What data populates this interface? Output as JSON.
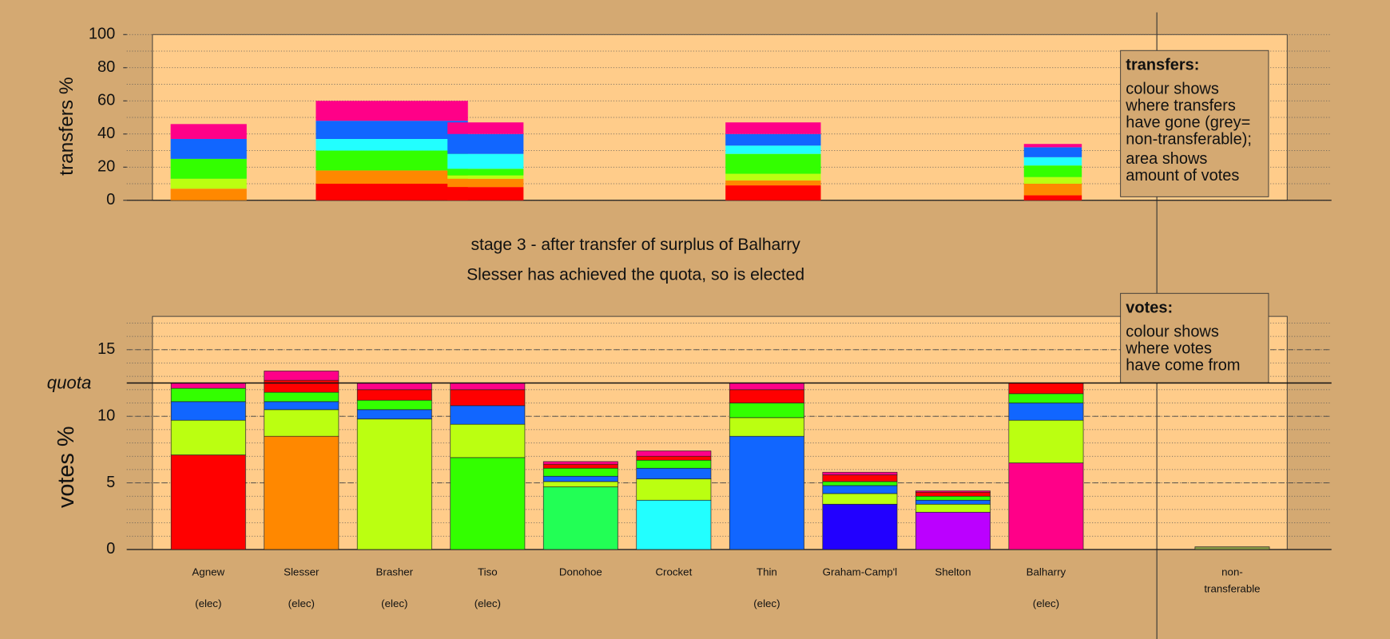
{
  "stage_title": "stage 3 - after transfer of surplus of Balharry",
  "stage_note": "Slesser has achieved the quota, so is elected",
  "chart_data": [
    {
      "type": "transfers",
      "ylabel": "transfers %",
      "ylim": [
        0,
        100
      ],
      "yticks": [
        0,
        20,
        40,
        60,
        80,
        100
      ],
      "xlim": [
        0,
        100
      ],
      "grid": true,
      "note": {
        "title": "transfers:",
        "lines": [
          "colour shows",
          "where transfers",
          "have gone (grey=",
          "non-transferable);",
          "area shows",
          "amount of votes"
        ]
      },
      "bars": [
        {
          "x": 1.6,
          "width": 6.7,
          "segments": [
            {
              "color": "#ff8800",
              "value": 7
            },
            {
              "color": "#bbff11",
              "value": 6
            },
            {
              "color": "#33ff00",
              "value": 12
            },
            {
              "color": "#1166ff",
              "value": 12
            },
            {
              "color": "#ff0088",
              "value": 9
            }
          ]
        },
        {
          "x": 14.4,
          "width": 13.4,
          "segments": [
            {
              "color": "#ff0000",
              "value": 10
            },
            {
              "color": "#ff8800",
              "value": 8
            },
            {
              "color": "#33ff00",
              "value": 12
            },
            {
              "color": "#22ffff",
              "value": 7
            },
            {
              "color": "#1166ff",
              "value": 11
            },
            {
              "color": "#ff0088",
              "value": 12
            }
          ]
        },
        {
          "x": 26.0,
          "width": 6.7,
          "segments": [
            {
              "color": "#ff0000",
              "value": 8
            },
            {
              "color": "#ff8800",
              "value": 5
            },
            {
              "color": "#bbff11",
              "value": 2
            },
            {
              "color": "#33ff00",
              "value": 4
            },
            {
              "color": "#22ffff",
              "value": 9
            },
            {
              "color": "#1166ff",
              "value": 12
            },
            {
              "color": "#ff0088",
              "value": 7
            }
          ]
        },
        {
          "x": 50.5,
          "width": 8.4,
          "segments": [
            {
              "color": "#ff0000",
              "value": 9
            },
            {
              "color": "#ff8800",
              "value": 3
            },
            {
              "color": "#bbff11",
              "value": 4
            },
            {
              "color": "#33ff00",
              "value": 12
            },
            {
              "color": "#22ffff",
              "value": 5
            },
            {
              "color": "#1166ff",
              "value": 7
            },
            {
              "color": "#ff0088",
              "value": 7
            }
          ]
        },
        {
          "x": 76.8,
          "width": 5.1,
          "segments": [
            {
              "color": "#ff0000",
              "value": 3
            },
            {
              "color": "#ff8800",
              "value": 7
            },
            {
              "color": "#bbff11",
              "value": 4
            },
            {
              "color": "#33ff00",
              "value": 7
            },
            {
              "color": "#22ffff",
              "value": 5
            },
            {
              "color": "#1166ff",
              "value": 6
            },
            {
              "color": "#ff0088",
              "value": 2
            }
          ]
        }
      ]
    },
    {
      "type": "votes",
      "ylabel": "votes %",
      "ylim": [
        0,
        17.5
      ],
      "yticks": [
        0,
        5,
        10,
        15
      ],
      "grid": true,
      "minor_grid": 1,
      "quota": {
        "label": "quota",
        "value": 12.5
      },
      "note": {
        "title": "votes:",
        "lines": [
          "colour shows",
          "where votes",
          "have come from"
        ]
      },
      "categories": [
        "Agnew",
        "Slesser",
        "Brasher",
        "Tiso",
        "Donohoe",
        "Crocket",
        "Thin",
        "Graham-Camp'l",
        "Shelton",
        "Balharry",
        null,
        [
          "non-",
          "transferable"
        ]
      ],
      "sub_labels": [
        "(elec)",
        "(elec)",
        "(elec)",
        "(elec)",
        null,
        null,
        "(elec)",
        null,
        null,
        "(elec)",
        null,
        null
      ],
      "bars": [
        {
          "segments": [
            {
              "color": "#ff0000",
              "value": 7.1
            },
            {
              "color": "#bbff11",
              "value": 2.6
            },
            {
              "color": "#1166ff",
              "value": 1.4
            },
            {
              "color": "#33ff00",
              "value": 1.0
            },
            {
              "color": "#ff0088",
              "value": 0.4
            }
          ]
        },
        {
          "segments": [
            {
              "color": "#ff8800",
              "value": 8.5
            },
            {
              "color": "#bbff11",
              "value": 2.0
            },
            {
              "color": "#1166ff",
              "value": 0.6
            },
            {
              "color": "#33ff00",
              "value": 0.7
            },
            {
              "color": "#ff0000",
              "value": 0.9
            },
            {
              "color": "#ff0088",
              "value": 0.7
            }
          ]
        },
        {
          "segments": [
            {
              "color": "#bbff11",
              "value": 9.8
            },
            {
              "color": "#1166ff",
              "value": 0.7
            },
            {
              "color": "#33ff00",
              "value": 0.7
            },
            {
              "color": "#ff0000",
              "value": 0.8
            },
            {
              "color": "#ff0088",
              "value": 0.5
            }
          ]
        },
        {
          "segments": [
            {
              "color": "#33ff00",
              "value": 6.9
            },
            {
              "color": "#bbff11",
              "value": 2.5
            },
            {
              "color": "#1166ff",
              "value": 1.4
            },
            {
              "color": "#ff0000",
              "value": 1.2
            },
            {
              "color": "#ff0088",
              "value": 0.5
            }
          ]
        },
        {
          "segments": [
            {
              "color": "#22ff55",
              "value": 4.7
            },
            {
              "color": "#bbff11",
              "value": 0.4
            },
            {
              "color": "#1166ff",
              "value": 0.4
            },
            {
              "color": "#33ff00",
              "value": 0.6
            },
            {
              "color": "#ff0000",
              "value": 0.3
            },
            {
              "color": "#ff0088",
              "value": 0.2
            }
          ]
        },
        {
          "segments": [
            {
              "color": "#22ffff",
              "value": 3.7
            },
            {
              "color": "#bbff11",
              "value": 1.6
            },
            {
              "color": "#1166ff",
              "value": 0.8
            },
            {
              "color": "#33ff00",
              "value": 0.6
            },
            {
              "color": "#ff0000",
              "value": 0.3
            },
            {
              "color": "#ff0088",
              "value": 0.4
            }
          ]
        },
        {
          "segments": [
            {
              "color": "#1166ff",
              "value": 8.5
            },
            {
              "color": "#bbff11",
              "value": 1.4
            },
            {
              "color": "#33ff00",
              "value": 1.1
            },
            {
              "color": "#ff0000",
              "value": 1.0
            },
            {
              "color": "#ff0088",
              "value": 0.5
            }
          ]
        },
        {
          "segments": [
            {
              "color": "#2200ff",
              "value": 3.4
            },
            {
              "color": "#bbff11",
              "value": 0.8
            },
            {
              "color": "#1166ff",
              "value": 0.6
            },
            {
              "color": "#33ff00",
              "value": 0.3
            },
            {
              "color": "#ff0000",
              "value": 0.5
            },
            {
              "color": "#ff0088",
              "value": 0.2
            }
          ]
        },
        {
          "segments": [
            {
              "color": "#bb00ff",
              "value": 2.8
            },
            {
              "color": "#bbff11",
              "value": 0.6
            },
            {
              "color": "#1166ff",
              "value": 0.3
            },
            {
              "color": "#33ff00",
              "value": 0.3
            },
            {
              "color": "#ff0000",
              "value": 0.3
            },
            {
              "color": "#ff0088",
              "value": 0.1
            }
          ]
        },
        {
          "segments": [
            {
              "color": "#ff0088",
              "value": 6.5
            },
            {
              "color": "#bbff11",
              "value": 3.2
            },
            {
              "color": "#1166ff",
              "value": 1.3
            },
            {
              "color": "#33ff00",
              "value": 0.7
            },
            {
              "color": "#ff0000",
              "value": 0.8
            }
          ]
        },
        null,
        {
          "segments": [
            {
              "color": "#889944",
              "value": 0.2
            }
          ]
        }
      ]
    }
  ]
}
